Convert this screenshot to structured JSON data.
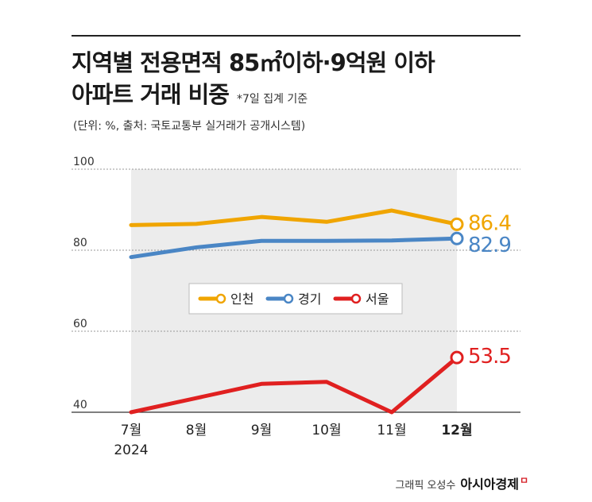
{
  "header": {
    "title_line1": "지역별 전용면적 85㎡이하·9억원 이하",
    "title_line2": "아파트 거래 비중",
    "note": "*7일 집계 기준",
    "unit": "(단위: %, 출처: 국토교통부 실거래가 공개시스템)"
  },
  "credit": {
    "graphic": "그래픽 오성수",
    "brand": "아시아경제"
  },
  "chart_data": {
    "type": "line",
    "categories": [
      "7월",
      "8월",
      "9월",
      "10월",
      "11월",
      "12월"
    ],
    "year_label": "2024",
    "ylim": [
      40,
      100
    ],
    "yticks": [
      40,
      60,
      80,
      100
    ],
    "legend_position": "center",
    "series": [
      {
        "name": "인천",
        "color": "#f0a500",
        "values": [
          86.2,
          86.5,
          88.2,
          87.0,
          89.8,
          86.4
        ],
        "end_label": "86.4"
      },
      {
        "name": "경기",
        "color": "#4a86c5",
        "values": [
          78.3,
          80.7,
          82.3,
          82.3,
          82.4,
          82.9
        ],
        "end_label": "82.9"
      },
      {
        "name": "서울",
        "color": "#e02020",
        "values": [
          40.0,
          43.5,
          47.0,
          47.5,
          40.0,
          53.5
        ],
        "end_label": "53.5"
      }
    ]
  }
}
